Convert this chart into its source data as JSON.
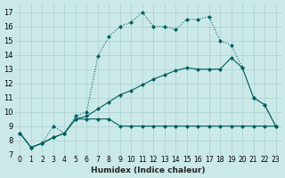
{
  "xlabel": "Humidex (Indice chaleur)",
  "bg_color": "#cce9e9",
  "line_color": "#006060",
  "xlim": [
    -0.5,
    23.5
  ],
  "ylim": [
    7,
    17.6
  ],
  "xtick_labels": [
    "0",
    "1",
    "2",
    "3",
    "4",
    "5",
    "6",
    "7",
    "8",
    "9",
    "10",
    "11",
    "12",
    "13",
    "14",
    "15",
    "16",
    "17",
    "18",
    "19",
    "20",
    "21",
    "22",
    "23"
  ],
  "ytick_vals": [
    7,
    8,
    9,
    10,
    11,
    12,
    13,
    14,
    15,
    16,
    17
  ],
  "ytick_labels": [
    "7",
    "8",
    "9",
    "10",
    "11",
    "12",
    "13",
    "14",
    "15",
    "16",
    "17"
  ],
  "line_dotted_y": [
    8.5,
    7.5,
    7.8,
    9.0,
    8.5,
    9.7,
    10.0,
    13.9,
    15.3,
    16.0,
    16.3,
    17.0,
    16.0,
    16.0,
    15.8,
    16.5,
    16.5,
    16.7,
    15.0,
    14.7,
    13.1,
    11.0,
    10.5,
    9.0
  ],
  "line_flat_y": [
    8.5,
    7.5,
    7.8,
    8.2,
    8.5,
    9.5,
    9.5,
    9.5,
    9.5,
    9.0,
    9.0,
    9.0,
    9.0,
    9.0,
    9.0,
    9.0,
    9.0,
    9.0,
    9.0,
    9.0,
    9.0,
    9.0,
    9.0,
    9.0
  ],
  "line_diag_y": [
    8.5,
    7.5,
    7.8,
    8.2,
    8.5,
    9.5,
    9.7,
    10.2,
    10.7,
    11.2,
    11.5,
    11.9,
    12.3,
    12.6,
    12.9,
    13.1,
    13.0,
    13.0,
    13.0,
    13.8,
    13.1,
    11.0,
    10.5,
    9.0
  ]
}
